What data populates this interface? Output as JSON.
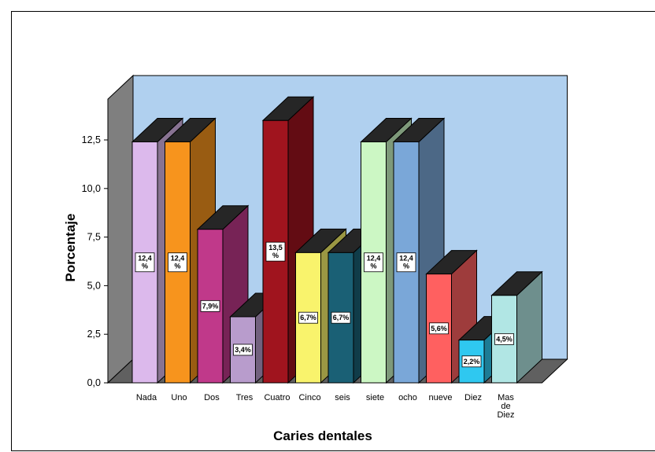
{
  "chart_data": {
    "type": "bar",
    "title": "",
    "xlabel": "Caries dentales",
    "ylabel": "Porcentaje",
    "ylim": [
      0,
      14
    ],
    "y_ticks": [
      "0,0",
      "2,5",
      "5,0",
      "7,5",
      "10,0",
      "12,5"
    ],
    "categories": [
      "Nada",
      "Uno",
      "Dos",
      "Tres",
      "Cuatro",
      "Cinco",
      "seis",
      "siete",
      "ocho",
      "nueve",
      "Diez",
      "Mas de Diez"
    ],
    "values": [
      12.4,
      12.4,
      7.9,
      3.4,
      13.5,
      6.7,
      6.7,
      12.4,
      12.4,
      5.6,
      2.2,
      4.5
    ],
    "data_labels": [
      "12,4 %",
      "12,4 %",
      "7,9%",
      "3,4%",
      "13,5 %",
      "6,7%",
      "6,7%",
      "12,4 %",
      "12,4 %",
      "5,6%",
      "2,2%",
      "4,5%"
    ],
    "colors": [
      "#dcb9ec",
      "#f7941d",
      "#c0398a",
      "#b89ccc",
      "#a0141e",
      "#f9f36c",
      "#1a6075",
      "#ccf7c4",
      "#7aa7d8",
      "#ff6060",
      "#2fc8f0",
      "#b1e6e4"
    ],
    "background_color": "#b0d0ef",
    "grid": false,
    "style": "3d"
  }
}
